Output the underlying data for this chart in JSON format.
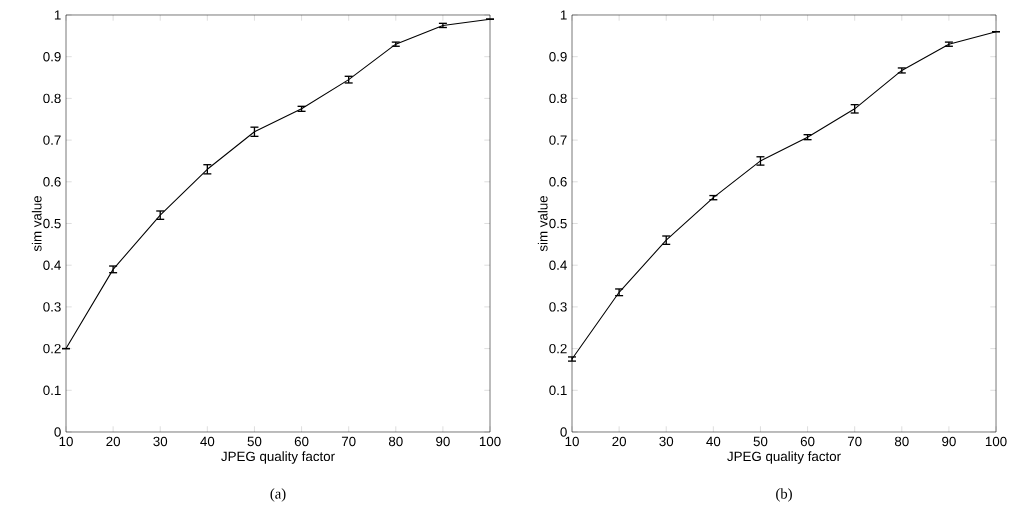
{
  "chart_data": [
    {
      "type": "line",
      "xlabel": "JPEG quality factor",
      "ylabel": "sim value",
      "annotations": [
        "(a)"
      ],
      "color": "#000000",
      "x": [
        10,
        20,
        30,
        40,
        50,
        60,
        70,
        80,
        90,
        100
      ],
      "values": [
        0.2,
        0.39,
        0.52,
        0.63,
        0.72,
        0.775,
        0.845,
        0.93,
        0.975,
        0.99
      ],
      "errors": [
        null,
        0.008,
        0.01,
        0.011,
        0.011,
        0.006,
        0.008,
        0.005,
        0.005,
        null
      ],
      "xlim": [
        10,
        100
      ],
      "ylim": [
        0,
        1
      ],
      "xticks": [
        10,
        20,
        30,
        40,
        50,
        60,
        70,
        80,
        90,
        100
      ],
      "yticks": [
        0,
        0.1,
        0.2,
        0.3,
        0.4,
        0.5,
        0.6,
        0.7,
        0.8,
        0.9,
        1
      ]
    },
    {
      "type": "line",
      "xlabel": "JPEG quality factor",
      "ylabel": "sim value",
      "annotations": [
        "(b)"
      ],
      "color": "#000000",
      "x": [
        10,
        20,
        30,
        40,
        50,
        60,
        70,
        80,
        90,
        100
      ],
      "values": [
        0.175,
        0.335,
        0.46,
        0.562,
        0.65,
        0.707,
        0.775,
        0.867,
        0.93,
        0.96
      ],
      "errors": [
        0.005,
        0.008,
        0.01,
        0.005,
        0.01,
        0.006,
        0.01,
        0.006,
        0.005,
        null
      ],
      "xlim": [
        10,
        100
      ],
      "ylim": [
        0,
        1
      ],
      "xticks": [
        10,
        20,
        30,
        40,
        50,
        60,
        70,
        80,
        90,
        100
      ],
      "yticks": [
        0,
        0.1,
        0.2,
        0.3,
        0.4,
        0.5,
        0.6,
        0.7,
        0.8,
        0.9,
        1
      ]
    }
  ]
}
